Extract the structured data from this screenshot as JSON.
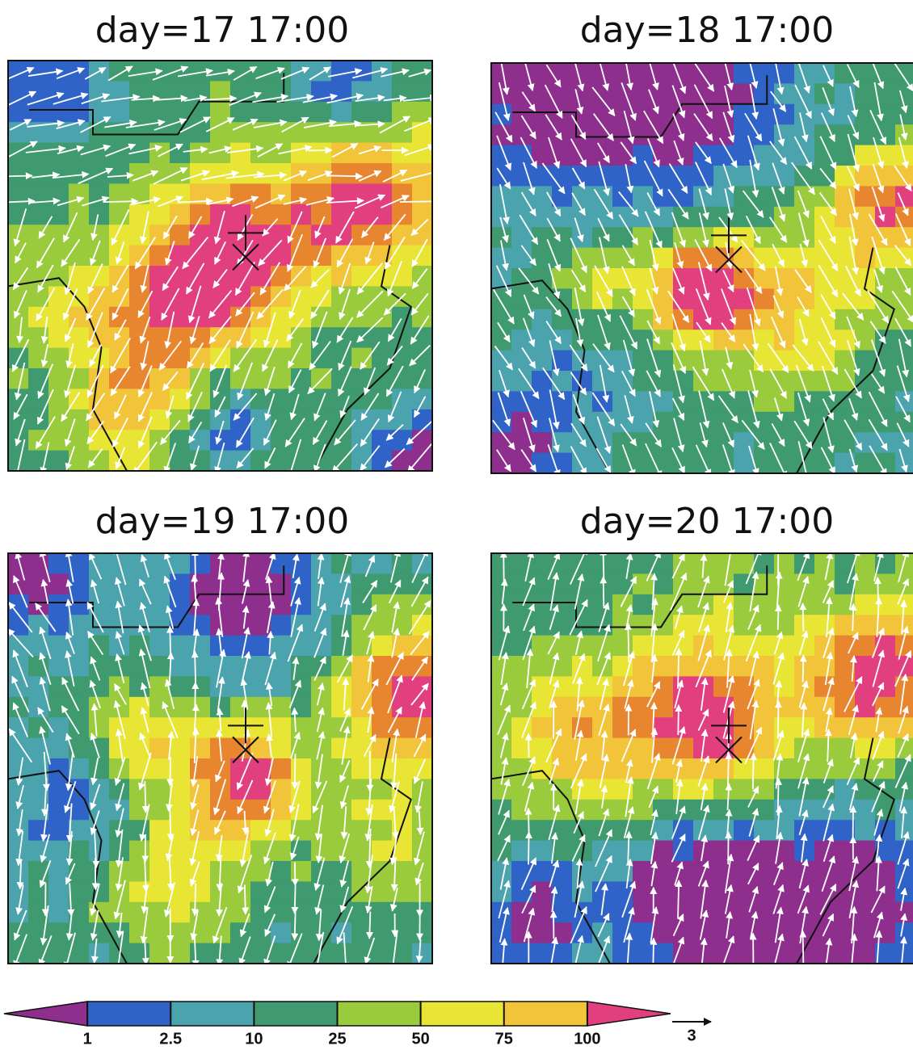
{
  "panels": [
    {
      "title": "day=17  17:00"
    },
    {
      "title": "day=18  17:00"
    },
    {
      "title": "day=19  17:00"
    },
    {
      "title": "day=20  17:00"
    }
  ],
  "colorbar": {
    "levels": [
      1,
      2.5,
      10,
      25,
      50,
      75,
      100
    ],
    "colors": [
      "#8e2f8e",
      "#2f63c8",
      "#4aa3ad",
      "#3f9a6f",
      "#9acb3c",
      "#e8e535",
      "#f2c43a",
      "#e8862f",
      "#e23f7f"
    ]
  },
  "vector_key": {
    "value": 3
  }
}
